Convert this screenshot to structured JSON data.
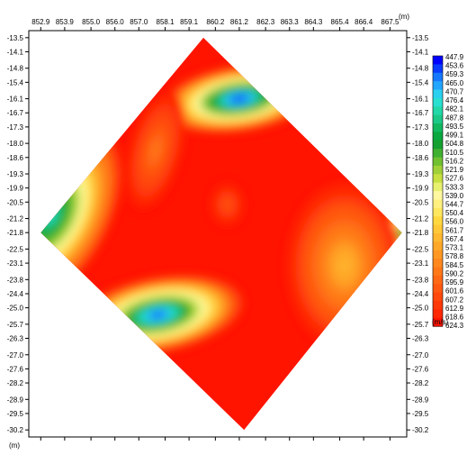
{
  "chart_data": {
    "type": "heatmap",
    "x_ticks": [
      "852.9",
      "853.9",
      "855.0",
      "856.0",
      "857.0",
      "858.1",
      "859.1",
      "860.2",
      "861.2",
      "862.3",
      "863.3",
      "864.3",
      "865.4",
      "866.4",
      "867.5"
    ],
    "y_ticks": [
      "-13.5",
      "-14.1",
      "-14.8",
      "-15.4",
      "-16.1",
      "-16.7",
      "-17.3",
      "-18.0",
      "-18.6",
      "-19.3",
      "-19.9",
      "-20.5",
      "-21.2",
      "-21.8",
      "-22.5",
      "-23.1",
      "-23.8",
      "-24.4",
      "-25.0",
      "-25.7",
      "-26.3",
      "-27.0",
      "-27.6",
      "-28.2",
      "-28.9",
      "-29.5",
      "-30.2"
    ],
    "x_unit": "(m)",
    "y_unit": "(m)",
    "xlim": [
      852.4,
      868.2
    ],
    "ylim": [
      -30.5,
      -13.2
    ],
    "colorbar": {
      "unit": "(m/s)",
      "labels": [
        "447.9",
        "453.6",
        "459.3",
        "465.0",
        "470.7",
        "476.4",
        "482.1",
        "487.8",
        "493.5",
        "499.1",
        "504.8",
        "510.5",
        "516.2",
        "521.9",
        "527.6",
        "533.3",
        "539.0",
        "544.7",
        "550.4",
        "556.0",
        "561.7",
        "567.4",
        "573.1",
        "578.8",
        "584.5",
        "590.2",
        "595.9",
        "601.6",
        "607.2",
        "612.9",
        "618.6",
        "624.3"
      ],
      "colors": [
        "#0000ff",
        "#0a3cff",
        "#1678ff",
        "#22a5ff",
        "#2bd0f0",
        "#28e0d0",
        "#22d8a8",
        "#1cc888",
        "#12b860",
        "#0aa840",
        "#15a030",
        "#40b030",
        "#70c030",
        "#a0d038",
        "#c8e040",
        "#e8f070",
        "#fff8a0",
        "#fff080",
        "#ffe860",
        "#ffd840",
        "#ffc838",
        "#ffb830",
        "#ffa828",
        "#ff9822",
        "#ff881e",
        "#ff7818",
        "#ff6814",
        "#ff5810",
        "#ff480c",
        "#ff3808",
        "#ff2804",
        "#ff1400"
      ],
      "min": 447.9,
      "max": 624.3
    },
    "domain": {
      "top": [
        859.7,
        -13.5
      ],
      "right": [
        868.0,
        -21.8
      ],
      "bottom": [
        861.4,
        -30.2
      ],
      "left": [
        852.9,
        -21.8
      ]
    },
    "background_value": 624.3,
    "anomalies": [
      {
        "x": 861.2,
        "y": -16.1,
        "rx": 3.3,
        "ry": 1.4,
        "rot": -8,
        "min": 447.9
      },
      {
        "x": 857.8,
        "y": -25.3,
        "rx": 3.6,
        "ry": 1.6,
        "rot": -10,
        "min": 453.6
      },
      {
        "x": 853.3,
        "y": -21.1,
        "rx": 2.4,
        "ry": 4.3,
        "rot": 30,
        "min": 476.4
      },
      {
        "x": 868.2,
        "y": -21.8,
        "rx": 3.2,
        "ry": 1.1,
        "rot": -15,
        "min": 504.8
      },
      {
        "x": 865.6,
        "y": -23.2,
        "rx": 2.4,
        "ry": 3.5,
        "rot": 0,
        "min": 567.4
      },
      {
        "x": 857.7,
        "y": -18.3,
        "rx": 1.1,
        "ry": 2.6,
        "rot": 15,
        "min": 590.2
      },
      {
        "x": 860.7,
        "y": -20.6,
        "rx": 0.7,
        "ry": 0.9,
        "rot": 0,
        "min": 601.6
      }
    ]
  }
}
